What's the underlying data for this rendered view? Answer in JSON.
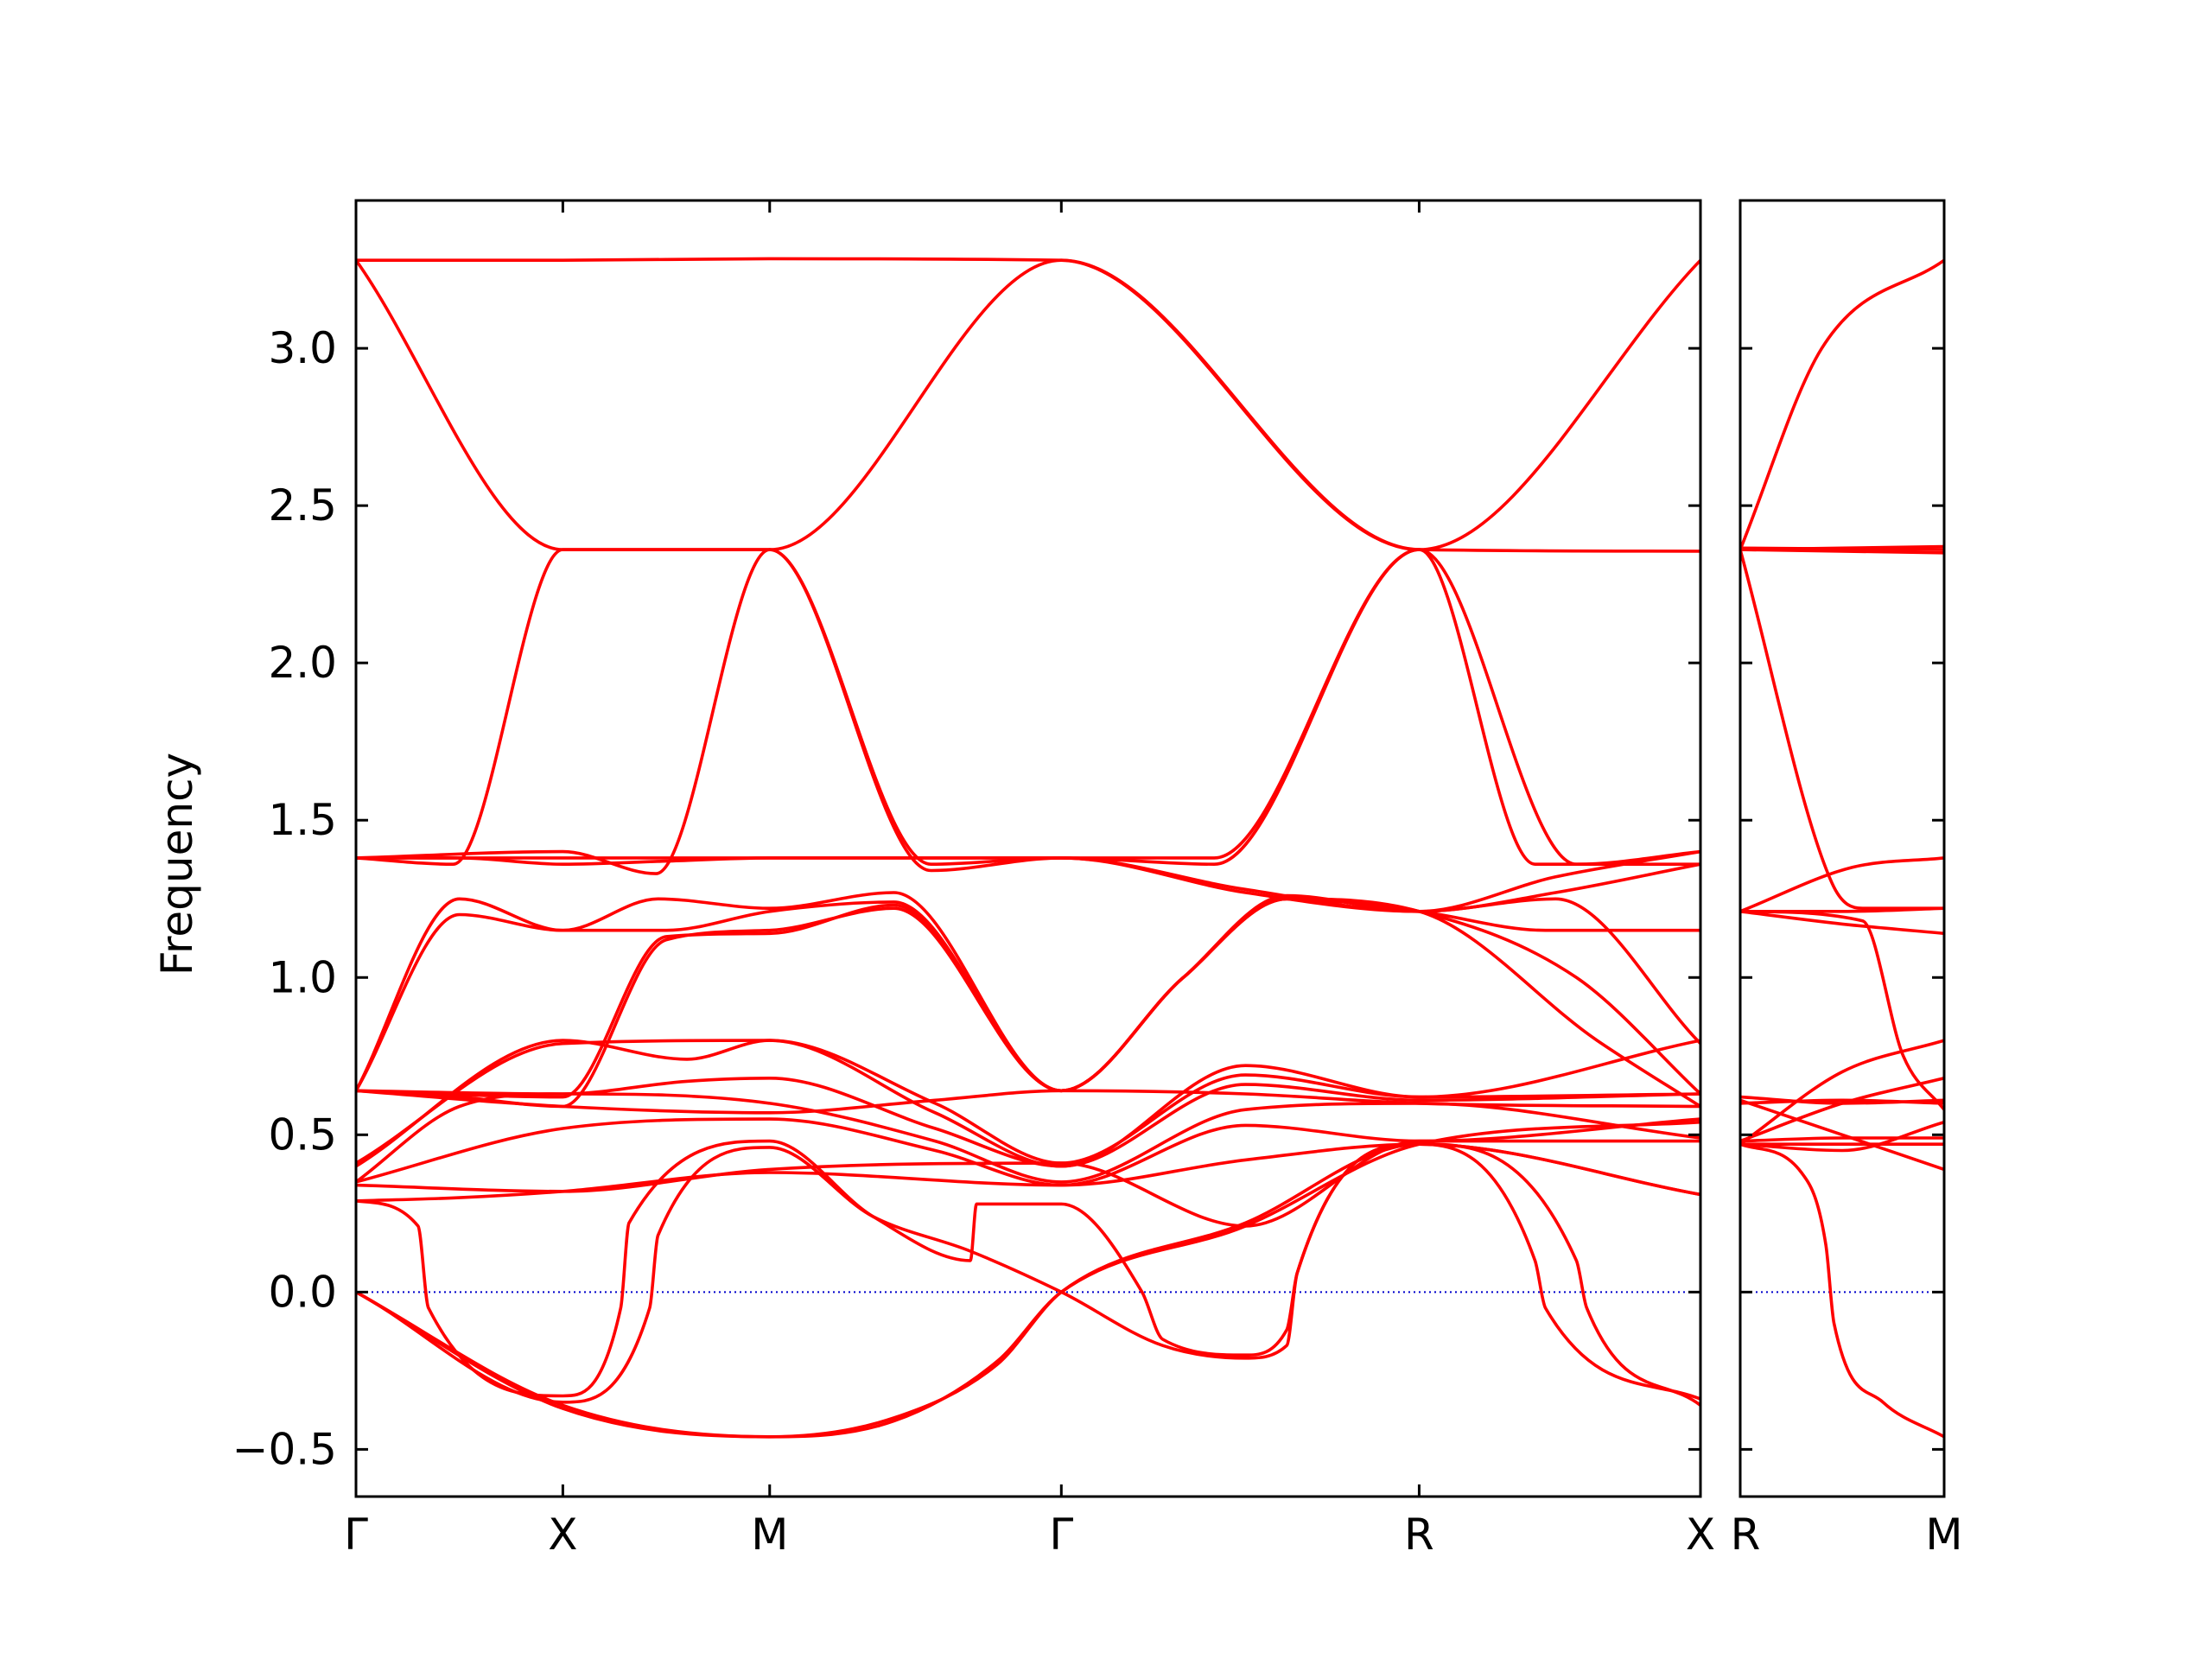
{
  "chart_data": {
    "type": "line",
    "ylabel": "Frequency",
    "xlabel": "",
    "title": "",
    "ylim": [
      -0.65,
      3.47
    ],
    "yticks": [
      -0.5,
      0.0,
      0.5,
      1.0,
      1.5,
      2.0,
      2.5,
      3.0
    ],
    "ytick_labels": [
      "−0.5",
      "0.0",
      "0.5",
      "1.0",
      "1.5",
      "2.0",
      "2.5",
      "3.0"
    ],
    "line_color": "#ff0000",
    "zero_line_color": "#0000cc",
    "grid": false,
    "panels": [
      {
        "name": "main",
        "xrange": [
          0,
          6.5
        ],
        "ticks": [
          {
            "x": 0.0,
            "label": "Γ"
          },
          {
            "x": 1.0,
            "label": "X"
          },
          {
            "x": 2.0,
            "label": "M"
          },
          {
            "x": 3.41,
            "label": "Γ"
          },
          {
            "x": 5.14,
            "label": "R"
          },
          {
            "x": 6.5,
            "label": "X"
          }
        ],
        "bands": [
          {
            "x": [
              0,
              1.0,
              2.0,
              3.41,
              5.14,
              6.5
            ],
            "y": [
              3.28,
              3.28,
              3.285,
              3.28,
              2.36,
              3.28
            ]
          },
          {
            "x": [
              0,
              1.0,
              2.0,
              3.41,
              5.14,
              6.5
            ],
            "y": [
              3.28,
              2.36,
              2.36,
              3.28,
              2.36,
              2.355
            ]
          },
          {
            "x": [
              0,
              0.47,
              1.0,
              2.0,
              2.78,
              3.41,
              4.15,
              5.14,
              5.9,
              6.5
            ],
            "y": [
              1.38,
              1.36,
              2.36,
              2.36,
              1.36,
              1.38,
              1.36,
              2.36,
              1.36,
              1.4
            ]
          },
          {
            "x": [
              0,
              1.0,
              1.45,
              2.0,
              2.78,
              3.41,
              4.15,
              5.14,
              5.7,
              6.5
            ],
            "y": [
              1.38,
              1.4,
              1.33,
              2.36,
              1.34,
              1.38,
              1.38,
              2.36,
              1.36,
              1.36
            ]
          },
          {
            "x": [
              0,
              0.5,
              1.0,
              1.5,
              2.0,
              2.8,
              3.41,
              4.3,
              5.14,
              5.8,
              6.5
            ],
            "y": [
              1.38,
              1.38,
              1.36,
              1.37,
              1.38,
              1.38,
              1.38,
              1.28,
              1.21,
              1.27,
              1.36
            ]
          },
          {
            "x": [
              0,
              0.5,
              1.0,
              1.5,
              2.0,
              2.8,
              3.41,
              4.3,
              5.14,
              5.8,
              6.5
            ],
            "y": [
              1.38,
              1.38,
              1.38,
              1.38,
              1.38,
              1.38,
              1.38,
              1.27,
              1.21,
              1.32,
              1.4
            ]
          },
          {
            "x": [
              0,
              0.5,
              1.0,
              1.46,
              2.0,
              2.6,
              3.41,
              4.0,
              4.5,
              5.14,
              5.75,
              6.5
            ],
            "y": [
              0.64,
              1.25,
              1.15,
              1.25,
              1.22,
              1.27,
              0.64,
              1.0,
              1.25,
              1.21,
              1.15,
              1.15
            ]
          },
          {
            "x": [
              0,
              0.5,
              1.0,
              1.5,
              2.0,
              2.6,
              3.41,
              4.0,
              4.5,
              5.14,
              5.8,
              6.5
            ],
            "y": [
              0.64,
              1.2,
              1.15,
              1.15,
              1.21,
              1.24,
              0.64,
              1.0,
              1.26,
              1.21,
              1.25,
              0.79
            ]
          },
          {
            "x": [
              0,
              1.0,
              1.5,
              2.0,
              2.6,
              3.41,
              4.0,
              4.5,
              5.14,
              6.0,
              6.5
            ],
            "y": [
              0.64,
              0.62,
              1.13,
              1.14,
              1.23,
              0.64,
              1.0,
              1.25,
              1.21,
              0.8,
              0.59
            ]
          },
          {
            "x": [
              0,
              0.5,
              1.0,
              1.5,
              2.0,
              2.6,
              3.41,
              4.0,
              4.5,
              5.14,
              5.9,
              6.5
            ],
            "y": [
              0.64,
              0.62,
              0.59,
              1.12,
              1.15,
              1.22,
              0.64,
              1.0,
              1.25,
              1.21,
              1.0,
              0.63
            ]
          },
          {
            "x": [
              0,
              1.0,
              1.6,
              2.0,
              2.8,
              3.41,
              4.3,
              5.14,
              6.5
            ],
            "y": [
              0.4,
              0.8,
              0.74,
              0.8,
              0.57,
              0.4,
              0.72,
              0.62,
              0.8
            ]
          },
          {
            "x": [
              0,
              1.0,
              2.0,
              2.8,
              3.41,
              4.3,
              5.14,
              6.5
            ],
            "y": [
              0.41,
              0.79,
              0.8,
              0.6,
              0.41,
              0.69,
              0.62,
              0.63
            ]
          },
          {
            "x": [
              0,
              1.0,
              1.6,
              2.0,
              2.8,
              3.41,
              4.3,
              5.14,
              6.5
            ],
            "y": [
              0.64,
              0.63,
              0.67,
              0.68,
              0.52,
              0.4,
              0.66,
              0.61,
              0.63
            ]
          },
          {
            "x": [
              0,
              1.0,
              2.0,
              2.8,
              3.41,
              4.3,
              5.14,
              6.5
            ],
            "y": [
              0.64,
              0.59,
              0.57,
              0.61,
              0.64,
              0.63,
              0.6,
              0.59
            ]
          },
          {
            "x": [
              0,
              0.5,
              1.0,
              2.0,
              2.8,
              3.41,
              4.3,
              5.14,
              6.5
            ],
            "y": [
              0.35,
              0.59,
              0.63,
              0.6,
              0.48,
              0.35,
              0.58,
              0.6,
              0.49
            ]
          },
          {
            "x": [
              0,
              1.0,
              2.0,
              2.8,
              3.41,
              4.3,
              5.14,
              6.5
            ],
            "y": [
              0.35,
              0.52,
              0.55,
              0.45,
              0.34,
              0.53,
              0.48,
              0.55
            ]
          },
          {
            "x": [
              0,
              0.5,
              1.0,
              2.0,
              3.41,
              4.3,
              5.14,
              6.5
            ],
            "y": [
              0.29,
              0.3,
              0.32,
              0.38,
              0.34,
              0.42,
              0.47,
              0.31
            ]
          },
          {
            "x": [
              0,
              1.0,
              2.0,
              3.41,
              4.3,
              5.14,
              6.5
            ],
            "y": [
              0.34,
              0.32,
              0.39,
              0.41,
              0.21,
              0.48,
              0.48
            ]
          },
          {
            "x": [
              0,
              0.3,
              0.35,
              1.0,
              1.28,
              1.32,
              2.0,
              2.5,
              2.97,
              3.0,
              3.41,
              3.8,
              3.9,
              4.3,
              4.5,
              4.55,
              5.14,
              5.7,
              5.75,
              6.5
            ],
            "y": [
              0.29,
              0.21,
              -0.05,
              -0.33,
              -0.05,
              0.22,
              0.48,
              0.24,
              0.1,
              0.28,
              0.28,
              0.0,
              -0.15,
              -0.2,
              -0.12,
              0.06,
              0.47,
              0.1,
              -0.05,
              -0.34
            ]
          },
          {
            "x": [
              0,
              1.0,
              1.42,
              1.46,
              2.0,
              2.5,
              2.97,
              3.41,
              3.9,
              4.3,
              4.5,
              4.55,
              5.14,
              5.9,
              5.95,
              6.5
            ],
            "y": [
              0.0,
              -0.35,
              -0.05,
              0.18,
              0.46,
              0.24,
              0.13,
              0.0,
              -0.17,
              -0.21,
              -0.17,
              0.06,
              0.47,
              0.1,
              -0.05,
              -0.36
            ]
          },
          {
            "x": [
              0,
              1.0,
              2.0,
              2.6,
              3.1,
              3.41,
              4.3,
              5.14,
              6.5
            ],
            "y": [
              0.0,
              -0.36,
              -0.46,
              -0.4,
              -0.23,
              0.0,
              0.22,
              0.47,
              0.31
            ]
          },
          {
            "x": [
              0,
              1.0,
              2.0,
              2.6,
              3.1,
              3.41,
              4.3,
              5.14,
              6.5
            ],
            "y": [
              0.0,
              -0.37,
              -0.46,
              -0.41,
              -0.22,
              0.0,
              0.21,
              0.47,
              0.54
            ]
          }
        ]
      },
      {
        "name": "right",
        "xrange": [
          0,
          1.0
        ],
        "ticks": [
          {
            "x": 0.0,
            "label": "R"
          },
          {
            "x": 1.0,
            "label": "M"
          }
        ],
        "bands": [
          {
            "x": [
              0,
              0.4,
              1.0
            ],
            "y": [
              2.36,
              3.0,
              3.28
            ]
          },
          {
            "x": [
              0,
              1.0
            ],
            "y": [
              2.36,
              2.37
            ]
          },
          {
            "x": [
              0,
              1.0
            ],
            "y": [
              2.36,
              2.35
            ]
          },
          {
            "x": [
              0,
              1.0
            ],
            "y": [
              2.365,
              2.36
            ]
          },
          {
            "x": [
              0,
              0.45,
              0.6,
              1.0
            ],
            "y": [
              2.36,
              1.3,
              1.22,
              1.22
            ]
          },
          {
            "x": [
              0,
              0.55,
              1.0
            ],
            "y": [
              1.21,
              1.35,
              1.38
            ]
          },
          {
            "x": [
              0,
              0.5,
              1.0
            ],
            "y": [
              1.21,
              1.21,
              1.22
            ]
          },
          {
            "x": [
              0,
              0.5,
              1.0
            ],
            "y": [
              1.21,
              1.17,
              1.14
            ]
          },
          {
            "x": [
              0,
              0.6,
              0.8,
              1.0
            ],
            "y": [
              1.21,
              1.18,
              0.75,
              0.58
            ]
          },
          {
            "x": [
              0,
              0.5,
              1.0
            ],
            "y": [
              0.47,
              0.7,
              0.8
            ]
          },
          {
            "x": [
              0,
              0.5,
              1.0
            ],
            "y": [
              0.48,
              0.6,
              0.68
            ]
          },
          {
            "x": [
              0,
              0.5,
              1.0
            ],
            "y": [
              0.62,
              0.6,
              0.61
            ]
          },
          {
            "x": [
              0,
              0.5,
              1.0
            ],
            "y": [
              0.6,
              0.61,
              0.6
            ]
          },
          {
            "x": [
              0,
              0.5,
              1.0
            ],
            "y": [
              0.61,
              0.5,
              0.39
            ]
          },
          {
            "x": [
              0,
              0.5,
              1.0
            ],
            "y": [
              0.47,
              0.47,
              0.47
            ]
          },
          {
            "x": [
              0,
              0.5,
              1.0
            ],
            "y": [
              0.48,
              0.49,
              0.49
            ]
          },
          {
            "x": [
              0,
              0.5,
              1.0
            ],
            "y": [
              0.47,
              0.45,
              0.54
            ]
          },
          {
            "x": [
              0,
              0.3,
              0.42,
              0.46,
              0.7,
              1.0
            ],
            "y": [
              0.47,
              0.38,
              0.15,
              -0.1,
              -0.35,
              -0.46
            ]
          }
        ]
      }
    ]
  }
}
